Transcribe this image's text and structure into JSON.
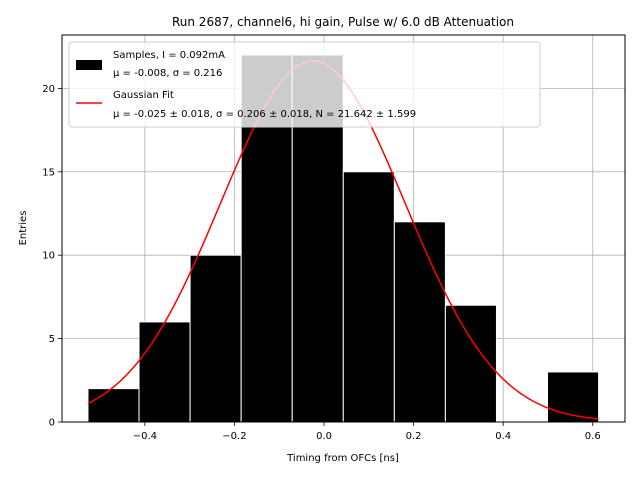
{
  "chart_data": {
    "type": "bar",
    "title": "Run 2687, channel6, hi gain, Pulse w/ 6.0 dB Attenuation",
    "xlabel": "Timing from OFCs [ns]",
    "ylabel": "Entries",
    "xlim": [
      -0.585,
      0.672
    ],
    "ylim": [
      0,
      23.2
    ],
    "grid": true,
    "bins": [
      {
        "left": -0.527,
        "right": -0.413,
        "count": 2
      },
      {
        "left": -0.413,
        "right": -0.299,
        "count": 6
      },
      {
        "left": -0.299,
        "right": -0.185,
        "count": 10
      },
      {
        "left": -0.185,
        "right": -0.071,
        "count": 22
      },
      {
        "left": -0.071,
        "right": 0.043,
        "count": 22
      },
      {
        "left": 0.043,
        "right": 0.157,
        "count": 15
      },
      {
        "left": 0.157,
        "right": 0.271,
        "count": 12
      },
      {
        "left": 0.271,
        "right": 0.385,
        "count": 7
      },
      {
        "left": 0.385,
        "right": 0.499,
        "count": 0
      },
      {
        "left": 0.499,
        "right": 0.613,
        "count": 3
      }
    ],
    "fit": {
      "mu": -0.025,
      "sigma": 0.206,
      "N": 21.642,
      "x_range": [
        -0.527,
        0.613
      ]
    },
    "x_ticks": [
      {
        "value": -0.4,
        "label": "−0.4"
      },
      {
        "value": -0.2,
        "label": "−0.2"
      },
      {
        "value": 0.0,
        "label": "0.0"
      },
      {
        "value": 0.2,
        "label": "0.2"
      },
      {
        "value": 0.4,
        "label": "0.4"
      },
      {
        "value": 0.6,
        "label": "0.6"
      }
    ],
    "y_ticks": [
      {
        "value": 0,
        "label": "0"
      },
      {
        "value": 5,
        "label": "5"
      },
      {
        "value": 10,
        "label": "10"
      },
      {
        "value": 15,
        "label": "15"
      },
      {
        "value": 20,
        "label": "20"
      }
    ],
    "legend": {
      "placement": "top-left",
      "entries": [
        {
          "series": "Samples",
          "line1": "Samples, I = 0.092mA",
          "line2": "μ = -0.008, σ = 0.216"
        },
        {
          "series": "Gaussian Fit",
          "line1": "Gaussian Fit",
          "line2": "μ = -0.025 ± 0.018, σ = 0.206 ± 0.018, N = 21.642 ± 1.599"
        }
      ]
    },
    "colors": {
      "bars": "#000000",
      "bar_edge": "#ffffff",
      "fit": "#ff0000",
      "grid": "#b0b0b0"
    }
  }
}
